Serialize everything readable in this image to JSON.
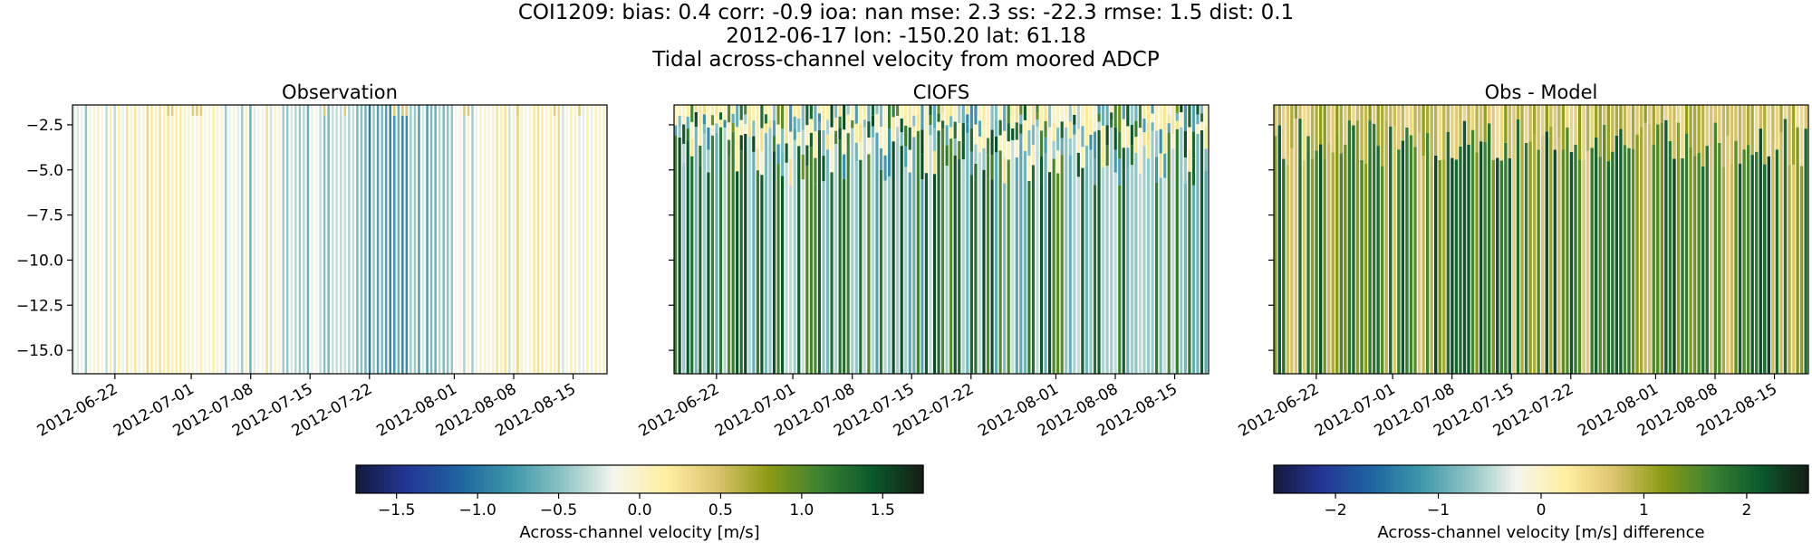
{
  "header": {
    "line1": "COI1209: bias: 0.4  corr: -0.9  ioa: nan  mse: 2.3  ss: -22.3  rmse: 1.5  dist: 0.1",
    "line2": "2012-06-17 lon: -150.20 lat: 61.18",
    "line3": "Tidal across-channel velocity from moored ADCP"
  },
  "chart_data": [
    {
      "type": "heatmap",
      "title": "Observation",
      "ylabel": "",
      "yticks": [
        "-2.5",
        "-5.0",
        "-7.5",
        "-10.0",
        "-12.5",
        "-15.0"
      ],
      "ylim": [
        -16.3,
        -1.4
      ],
      "xlim": [
        "2012-06-17",
        "2012-08-19"
      ],
      "xticks": [
        "2012-06-22",
        "2012-07-01",
        "2012-07-08",
        "2012-07-15",
        "2012-07-22",
        "2012-08-01",
        "2012-08-08",
        "2012-08-15"
      ],
      "value_range": [
        -1.75,
        1.75
      ],
      "pattern": "uniform-columns"
    },
    {
      "type": "heatmap",
      "title": "CIOFS",
      "yticks": [
        "-2.5",
        "-5.0",
        "-7.5",
        "-10.0",
        "-12.5",
        "-15.0"
      ],
      "ylim": [
        -16.3,
        -1.4
      ],
      "xlim": [
        "2012-06-17",
        "2012-08-19"
      ],
      "xticks": [
        "2012-06-22",
        "2012-07-01",
        "2012-07-08",
        "2012-07-15",
        "2012-07-22",
        "2012-08-01",
        "2012-08-08",
        "2012-08-15"
      ],
      "value_range": [
        -1.75,
        1.75
      ],
      "pattern": "surface-mixed-columns"
    },
    {
      "type": "heatmap",
      "title": "Obs - Model",
      "yticks": [
        "-2.5",
        "-5.0",
        "-7.5",
        "-10.0",
        "-12.5",
        "-15.0"
      ],
      "ylim": [
        -16.3,
        -1.4
      ],
      "xlim": [
        "2012-06-17",
        "2012-08-19"
      ],
      "xticks": [
        "2012-06-22",
        "2012-07-01",
        "2012-07-08",
        "2012-07-15",
        "2012-07-22",
        "2012-08-01",
        "2012-08-08",
        "2012-08-15"
      ],
      "value_range": [
        -2.6,
        2.6
      ],
      "pattern": "difference-columns"
    }
  ],
  "colorbars": [
    {
      "label": "Across-channel velocity [m/s]",
      "range": [
        -1.75,
        1.75
      ],
      "ticks": [
        -1.5,
        -1.0,
        -0.5,
        0.0,
        0.5,
        1.0,
        1.5
      ],
      "tick_labels": [
        "−1.5",
        "−1.0",
        "−0.5",
        "0.0",
        "0.5",
        "1.0",
        "1.5"
      ]
    },
    {
      "label": "Across-channel velocity [m/s] difference",
      "range": [
        -2.6,
        2.6
      ],
      "ticks": [
        -2,
        -1,
        0,
        1,
        2
      ],
      "tick_labels": [
        "−2",
        "−1",
        "0",
        "1",
        "2"
      ]
    }
  ],
  "colormap": [
    "#141a3c",
    "#243696",
    "#1e64a0",
    "#3c96aa",
    "#8cc3c3",
    "#f5f5ee",
    "#fff0a0",
    "#dcc36e",
    "#8c9b14",
    "#3c8232",
    "#0a5a2d",
    "#141e14"
  ]
}
